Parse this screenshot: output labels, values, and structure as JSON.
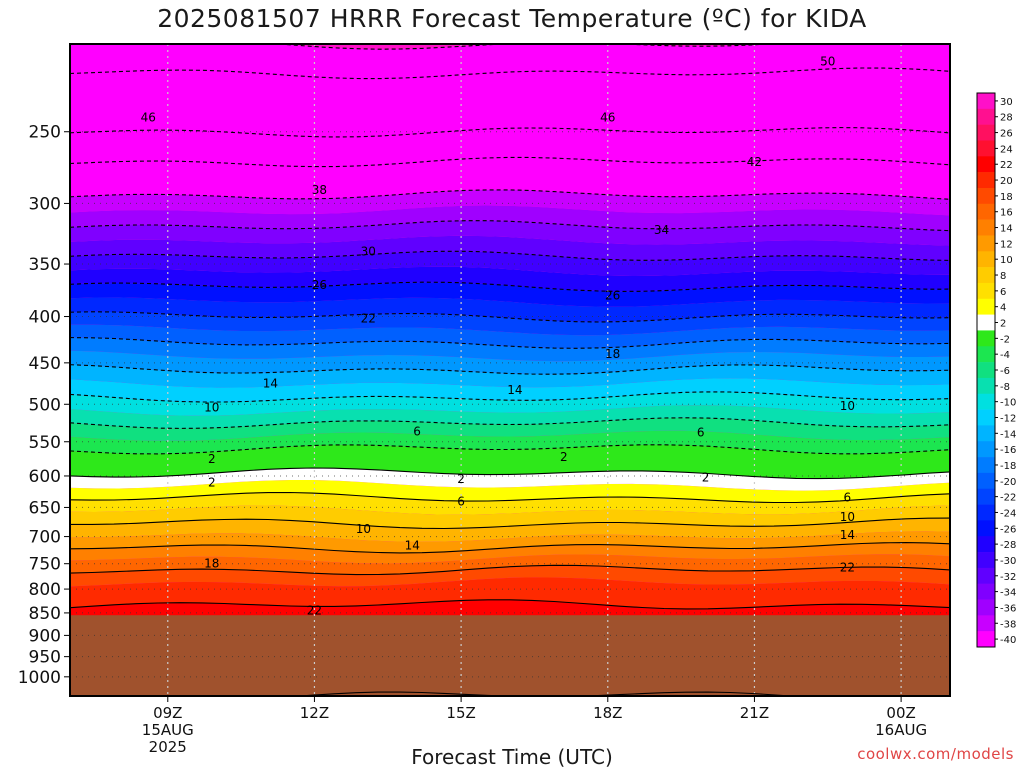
{
  "title": "2025081507 HRRR Forecast Temperature (ºC) for KIDA",
  "credit": "coolwx.com/models",
  "chart_data": {
    "type": "heatmap",
    "title": "2025081507 HRRR Forecast Temperature (ºC) for KIDA",
    "xlabel": "Forecast Time (UTC)",
    "ylabel": "",
    "x_range_hours": [
      7,
      25
    ],
    "y_axis": {
      "scale": "log",
      "inverted": true,
      "range_hPa": [
        200,
        1050
      ],
      "ticks": [
        250,
        300,
        350,
        400,
        450,
        500,
        550,
        600,
        650,
        700,
        750,
        800,
        850,
        900,
        950,
        1000
      ]
    },
    "x_ticks": [
      {
        "hour": 9,
        "lines": [
          "09Z",
          "15AUG",
          "2025"
        ]
      },
      {
        "hour": 12,
        "lines": [
          "12Z"
        ]
      },
      {
        "hour": 15,
        "lines": [
          "15Z"
        ]
      },
      {
        "hour": 18,
        "lines": [
          "18Z"
        ]
      },
      {
        "hour": 21,
        "lines": [
          "21Z"
        ]
      },
      {
        "hour": 24,
        "lines": [
          "00Z",
          "16AUG"
        ]
      }
    ],
    "underground_pressure_hPa": 855,
    "grid": true,
    "colorbar": {
      "placement": "right",
      "levels": [
        30,
        28,
        26,
        24,
        22,
        20,
        18,
        16,
        14,
        12,
        10,
        8,
        6,
        4,
        2,
        -2,
        -4,
        -6,
        -8,
        -10,
        -12,
        -14,
        -16,
        -18,
        -20,
        -22,
        -24,
        -26,
        -28,
        -30,
        -32,
        -34,
        -36,
        -38,
        -40
      ],
      "colors": [
        "#ff10c8",
        "#ff1090",
        "#ff1060",
        "#ff1030",
        "#ff0000",
        "#ff2a00",
        "#ff4a00",
        "#ff6600",
        "#ff8000",
        "#ff9a00",
        "#ffb400",
        "#ffcc00",
        "#ffe000",
        "#ffff00",
        "#ffffff",
        "#2ee81a",
        "#1ce650",
        "#10e080",
        "#08e0b0",
        "#00e0e0",
        "#00d0ff",
        "#00b4ff",
        "#0098ff",
        "#007cff",
        "#0060ff",
        "#0044ff",
        "#0028ff",
        "#0010ff",
        "#2000ff",
        "#4000ff",
        "#6000ff",
        "#8000ff",
        "#a000ff",
        "#c800ff",
        "#ff00ff"
      ]
    },
    "temperature_profile": [
      {
        "p": 1050,
        "t": 26
      },
      {
        "p": 850,
        "t": 22.5
      },
      {
        "p": 800,
        "t": 21
      },
      {
        "p": 750,
        "t": 17
      },
      {
        "p": 700,
        "t": 12
      },
      {
        "p": 650,
        "t": 7.5
      },
      {
        "p": 600,
        "t": 2.5
      },
      {
        "p": 575,
        "t": -0.5
      },
      {
        "p": 550,
        "t": -3
      },
      {
        "p": 500,
        "t": -9
      },
      {
        "p": 450,
        "t": -15
      },
      {
        "p": 400,
        "t": -22
      },
      {
        "p": 350,
        "t": -29
      },
      {
        "p": 300,
        "t": -37
      },
      {
        "p": 270,
        "t": -42
      },
      {
        "p": 250,
        "t": -46
      },
      {
        "p": 200,
        "t": -52
      }
    ],
    "contour_labels": [
      {
        "hour": 22.5,
        "p": 209,
        "value": "50"
      },
      {
        "hour": 8.6,
        "p": 241,
        "value": "46"
      },
      {
        "hour": 18.0,
        "p": 241,
        "value": "46"
      },
      {
        "hour": 21.0,
        "p": 270,
        "value": "42"
      },
      {
        "hour": 12.1,
        "p": 290,
        "value": "38"
      },
      {
        "hour": 19.1,
        "p": 321,
        "value": "34"
      },
      {
        "hour": 13.1,
        "p": 339,
        "value": "30"
      },
      {
        "hour": 12.1,
        "p": 369,
        "value": "26"
      },
      {
        "hour": 18.1,
        "p": 379,
        "value": "26"
      },
      {
        "hour": 13.1,
        "p": 402,
        "value": "22"
      },
      {
        "hour": 18.1,
        "p": 440,
        "value": "18"
      },
      {
        "hour": 11.1,
        "p": 474,
        "value": "14"
      },
      {
        "hour": 16.1,
        "p": 482,
        "value": "14"
      },
      {
        "hour": 9.9,
        "p": 504,
        "value": "10"
      },
      {
        "hour": 22.9,
        "p": 502,
        "value": "10"
      },
      {
        "hour": 14.1,
        "p": 536,
        "value": "6"
      },
      {
        "hour": 19.9,
        "p": 537,
        "value": "6"
      },
      {
        "hour": 9.9,
        "p": 575,
        "value": "2"
      },
      {
        "hour": 17.1,
        "p": 572,
        "value": "2"
      },
      {
        "hour": 9.9,
        "p": 610,
        "value": "2"
      },
      {
        "hour": 15.0,
        "p": 605,
        "value": "2"
      },
      {
        "hour": 20.0,
        "p": 602,
        "value": "2"
      },
      {
        "hour": 15.0,
        "p": 640,
        "value": "6"
      },
      {
        "hour": 22.9,
        "p": 634,
        "value": "6"
      },
      {
        "hour": 13.0,
        "p": 687,
        "value": "10"
      },
      {
        "hour": 22.9,
        "p": 666,
        "value": "10"
      },
      {
        "hour": 14.0,
        "p": 716,
        "value": "14"
      },
      {
        "hour": 22.9,
        "p": 697,
        "value": "14"
      },
      {
        "hour": 9.9,
        "p": 750,
        "value": "18"
      },
      {
        "hour": 12.0,
        "p": 845,
        "value": "22"
      },
      {
        "hour": 22.9,
        "p": 757,
        "value": "22"
      }
    ]
  }
}
